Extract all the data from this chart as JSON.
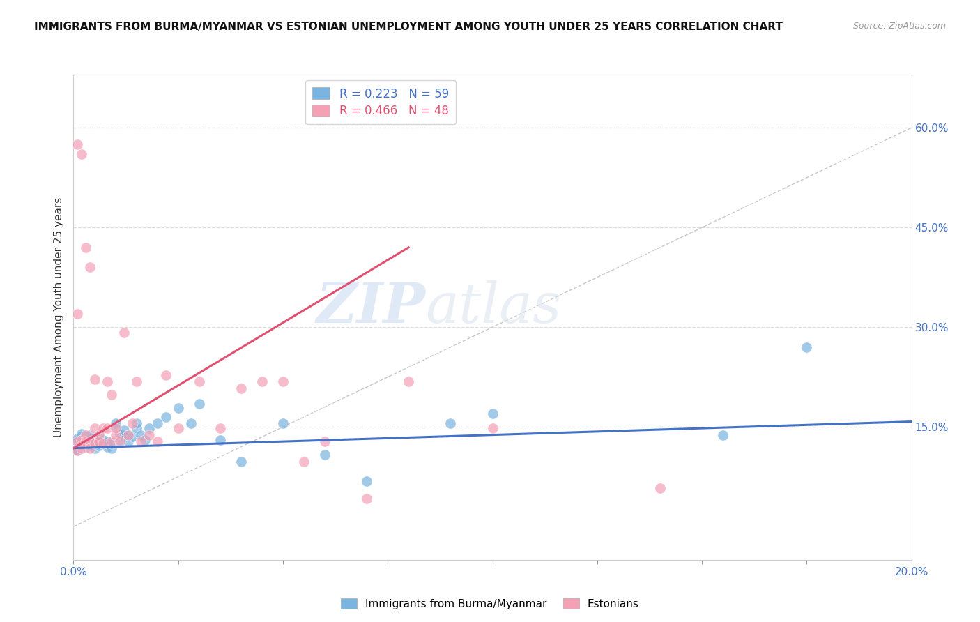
{
  "title": "IMMIGRANTS FROM BURMA/MYANMAR VS ESTONIAN UNEMPLOYMENT AMONG YOUTH UNDER 25 YEARS CORRELATION CHART",
  "source": "Source: ZipAtlas.com",
  "ylabel": "Unemployment Among Youth under 25 years",
  "xlim": [
    0.0,
    0.2
  ],
  "ylim": [
    -0.05,
    0.68
  ],
  "right_yticks": [
    0.15,
    0.3,
    0.45,
    0.6
  ],
  "right_yticklabels": [
    "15.0%",
    "30.0%",
    "45.0%",
    "60.0%"
  ],
  "blue_color": "#7ab4e0",
  "pink_color": "#f4a0b5",
  "blue_line_color": "#4472c4",
  "pink_line_color": "#e05070",
  "ref_line_color": "#c8c8c8",
  "legend_R1": "R = 0.223",
  "legend_N1": "N = 59",
  "legend_R2": "R = 0.466",
  "legend_N2": "N = 48",
  "watermark_zip": "ZIP",
  "watermark_atlas": "atlas",
  "blue_scatter_x": [
    0.001,
    0.001,
    0.001,
    0.001,
    0.001,
    0.001,
    0.002,
    0.002,
    0.002,
    0.002,
    0.002,
    0.003,
    0.003,
    0.003,
    0.003,
    0.004,
    0.004,
    0.004,
    0.004,
    0.005,
    0.005,
    0.005,
    0.006,
    0.006,
    0.006,
    0.007,
    0.007,
    0.008,
    0.008,
    0.009,
    0.009,
    0.01,
    0.01,
    0.011,
    0.011,
    0.012,
    0.012,
    0.013,
    0.013,
    0.014,
    0.015,
    0.015,
    0.016,
    0.017,
    0.018,
    0.02,
    0.022,
    0.025,
    0.028,
    0.03,
    0.035,
    0.04,
    0.05,
    0.06,
    0.07,
    0.09,
    0.1,
    0.155,
    0.175
  ],
  "blue_scatter_y": [
    0.125,
    0.128,
    0.13,
    0.132,
    0.118,
    0.115,
    0.122,
    0.127,
    0.13,
    0.135,
    0.14,
    0.12,
    0.125,
    0.13,
    0.135,
    0.122,
    0.128,
    0.132,
    0.138,
    0.118,
    0.125,
    0.13,
    0.122,
    0.128,
    0.135,
    0.125,
    0.13,
    0.12,
    0.128,
    0.118,
    0.125,
    0.15,
    0.155,
    0.13,
    0.14,
    0.135,
    0.145,
    0.128,
    0.138,
    0.135,
    0.148,
    0.155,
    0.138,
    0.13,
    0.148,
    0.155,
    0.165,
    0.178,
    0.155,
    0.185,
    0.13,
    0.098,
    0.155,
    0.108,
    0.068,
    0.155,
    0.17,
    0.138,
    0.27
  ],
  "pink_scatter_x": [
    0.001,
    0.001,
    0.001,
    0.001,
    0.002,
    0.002,
    0.002,
    0.002,
    0.003,
    0.003,
    0.003,
    0.004,
    0.004,
    0.004,
    0.005,
    0.005,
    0.005,
    0.006,
    0.006,
    0.007,
    0.007,
    0.008,
    0.008,
    0.009,
    0.009,
    0.01,
    0.01,
    0.011,
    0.012,
    0.013,
    0.014,
    0.015,
    0.016,
    0.018,
    0.02,
    0.022,
    0.025,
    0.03,
    0.035,
    0.04,
    0.045,
    0.05,
    0.055,
    0.06,
    0.07,
    0.08,
    0.1,
    0.14
  ],
  "pink_scatter_y": [
    0.575,
    0.32,
    0.128,
    0.115,
    0.56,
    0.13,
    0.122,
    0.118,
    0.42,
    0.138,
    0.128,
    0.39,
    0.128,
    0.118,
    0.148,
    0.222,
    0.125,
    0.138,
    0.128,
    0.125,
    0.148,
    0.218,
    0.148,
    0.198,
    0.128,
    0.138,
    0.148,
    0.128,
    0.292,
    0.138,
    0.155,
    0.218,
    0.128,
    0.138,
    0.128,
    0.228,
    0.148,
    0.218,
    0.148,
    0.208,
    0.218,
    0.218,
    0.098,
    0.128,
    0.042,
    0.218,
    0.148,
    0.058
  ],
  "blue_trend_x": [
    0.0,
    0.2
  ],
  "blue_trend_y": [
    0.118,
    0.158
  ],
  "pink_trend_x": [
    0.0,
    0.08
  ],
  "pink_trend_y": [
    0.118,
    0.42
  ],
  "ref_line_x": [
    0.0,
    0.2
  ],
  "ref_line_y": [
    0.0,
    0.6
  ]
}
